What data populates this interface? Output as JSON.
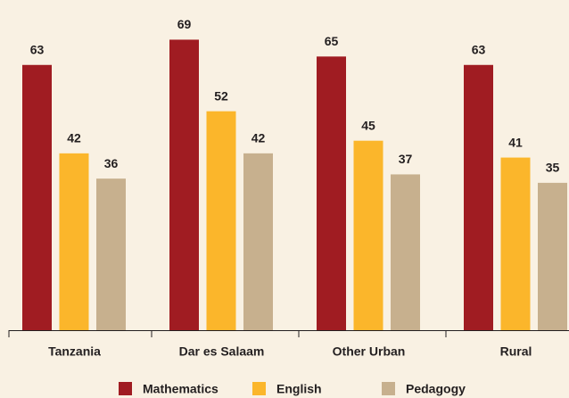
{
  "chart_data": {
    "type": "bar",
    "categories": [
      "Tanzania",
      "Dar es Salaam",
      "Other Urban",
      "Rural"
    ],
    "series": [
      {
        "name": "Mathematics",
        "color": "#a01c22",
        "values": [
          63,
          69,
          65,
          63
        ]
      },
      {
        "name": "English",
        "color": "#fbb62b",
        "values": [
          42,
          52,
          45,
          41
        ]
      },
      {
        "name": "Pedagogy",
        "color": "#c7b08e",
        "values": [
          36,
          42,
          37,
          35
        ]
      }
    ],
    "ylim": [
      0,
      78
    ],
    "legend": "bottom"
  }
}
